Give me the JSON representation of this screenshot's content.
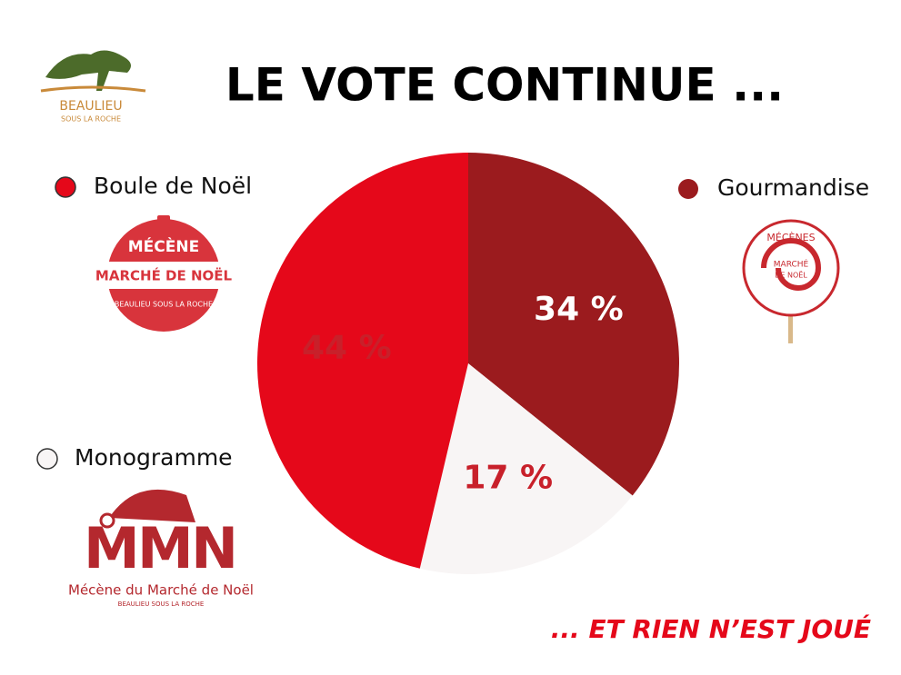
{
  "chart_data": {
    "type": "pie",
    "title": "LE VOTE CONTINUE ...",
    "footer": "... ET RIEN N’EST JOUÉ",
    "series": [
      {
        "name": "Gourmandise",
        "color": "#9b1b1e",
        "values": [
          34
        ],
        "value_labels": [
          "34 %"
        ]
      },
      {
        "name": "Monogramme",
        "color": "#f8f5f5",
        "values": [
          17
        ],
        "value_labels": [
          "17 %"
        ]
      },
      {
        "name": "Boule de Noël",
        "color": "#e5081a",
        "values": [
          44
        ],
        "value_labels": [
          "44 %"
        ]
      }
    ]
  },
  "logos": {
    "town": [
      "BEAULIEU",
      "SOUS LA ROCHE"
    ],
    "boule": [
      "MÉCÈNE",
      "MARCHÉ DE NOËL",
      "BEAULIEU SOUS LA ROCHE"
    ],
    "lollipop": [
      "MÉCÈNES",
      "MARCHÉ",
      "DE NOËL"
    ],
    "monogram": [
      "MMN",
      "Mécène du Marché de Noël",
      "BEAULIEU SOUS LA ROCHE"
    ]
  }
}
